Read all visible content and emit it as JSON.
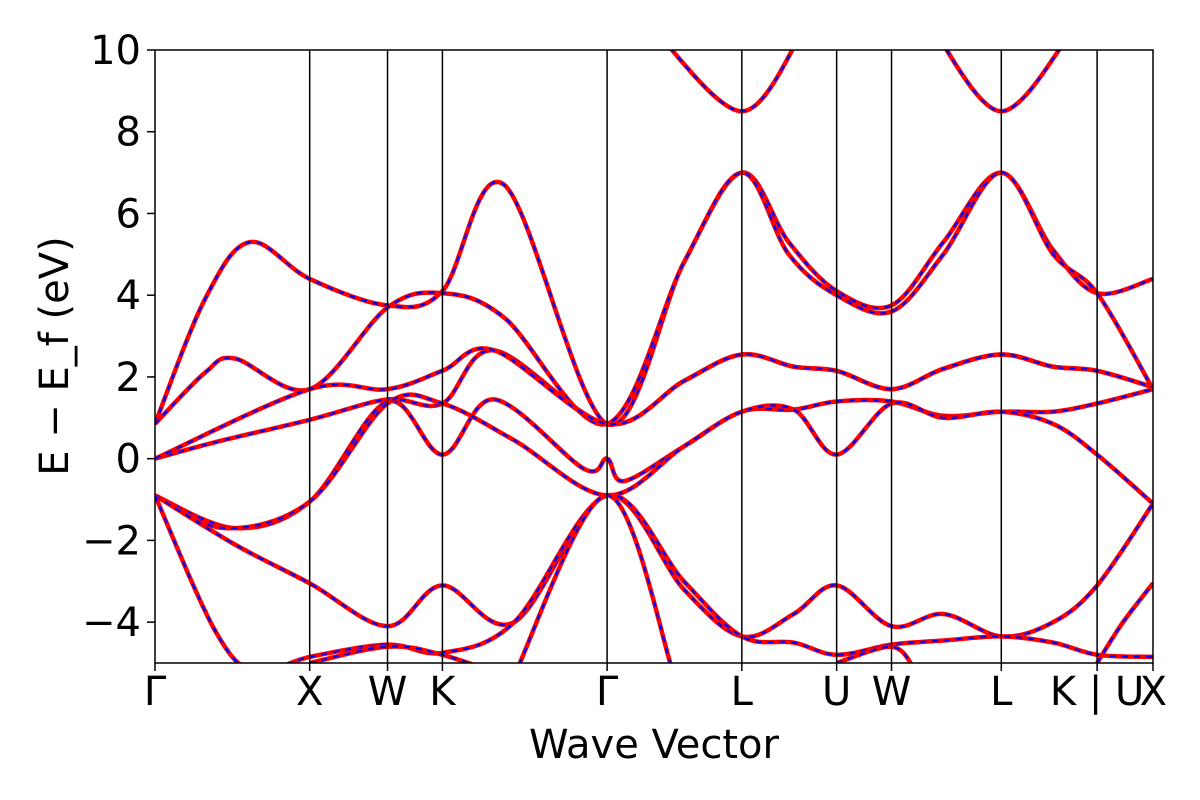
{
  "chart_data": {
    "type": "line",
    "title": "",
    "xlabel": "Wave Vector",
    "ylabel": "E − E_f (eV)",
    "ylim": [
      -5,
      10
    ],
    "yticks": [
      10,
      8,
      6,
      4,
      2,
      0,
      -2,
      -4
    ],
    "ytick_labels": [
      "10",
      "8",
      "6",
      "4",
      "2",
      "0",
      "−2",
      "−4"
    ],
    "kpoint_positions": [
      0,
      0.155,
      0.233,
      0.288,
      0.453,
      0.588,
      0.683,
      0.738,
      0.848,
      0.944,
      1.0
    ],
    "kpoint_labels": [
      "Γ",
      "X",
      "W",
      "K",
      "Γ",
      "L",
      "U",
      "W",
      "L",
      "K | U",
      "X"
    ],
    "grid": false,
    "legend": "none",
    "colors": {
      "band_solid": "#ff0000",
      "band_dashed": "#0000ff",
      "axis": "#000000"
    },
    "series": [
      {
        "values": [
          [
            0,
            0.85
          ],
          [
            0.05,
            3.9
          ],
          [
            0.095,
            5.3
          ],
          [
            0.155,
            4.4
          ],
          [
            0.233,
            3.75
          ],
          [
            0.288,
            4.1
          ],
          [
            0.35,
            6.7
          ],
          [
            0.453,
            0.85
          ],
          [
            0.53,
            4.8
          ],
          [
            0.588,
            7.0
          ],
          [
            0.635,
            5.3
          ],
          [
            0.683,
            4.1
          ],
          [
            0.738,
            3.75
          ],
          [
            0.79,
            5.3
          ],
          [
            0.848,
            7.0
          ],
          [
            0.9,
            5.1
          ],
          [
            0.944,
            4.05
          ],
          [
            1.0,
            4.4
          ]
        ]
      },
      {
        "values": [
          [
            0,
            0.85
          ],
          [
            0.05,
            2.1
          ],
          [
            0.08,
            2.45
          ],
          [
            0.155,
            1.7
          ],
          [
            0.233,
            3.7
          ],
          [
            0.288,
            4.05
          ],
          [
            0.35,
            3.45
          ],
          [
            0.453,
            0.85
          ],
          [
            0.53,
            4.8
          ],
          [
            0.588,
            7.0
          ],
          [
            0.635,
            5.0
          ],
          [
            0.683,
            4.0
          ],
          [
            0.738,
            3.6
          ],
          [
            0.79,
            5.0
          ],
          [
            0.848,
            7.0
          ],
          [
            0.9,
            5.0
          ],
          [
            0.944,
            4.05
          ],
          [
            1.0,
            1.7
          ]
        ]
      },
      {
        "values": [
          [
            0,
            0
          ],
          [
            0.06,
            0.4
          ],
          [
            0.155,
            0.95
          ],
          [
            0.233,
            1.45
          ],
          [
            0.288,
            1.35
          ],
          [
            0.34,
            2.65
          ],
          [
            0.453,
            0.85
          ],
          [
            0.53,
            1.9
          ],
          [
            0.588,
            2.55
          ],
          [
            0.64,
            2.25
          ],
          [
            0.683,
            2.15
          ],
          [
            0.738,
            1.7
          ],
          [
            0.79,
            2.2
          ],
          [
            0.848,
            2.55
          ],
          [
            0.9,
            2.25
          ],
          [
            0.944,
            2.15
          ],
          [
            1.0,
            1.75
          ]
        ]
      },
      {
        "values": [
          [
            0,
            0
          ],
          [
            0.155,
            1.7
          ],
          [
            0.233,
            1.7
          ],
          [
            0.288,
            2.15
          ],
          [
            0.34,
            2.65
          ],
          [
            0.453,
            0.85
          ],
          [
            0.53,
            1.9
          ],
          [
            0.588,
            2.55
          ],
          [
            0.64,
            2.25
          ],
          [
            0.683,
            2.15
          ],
          [
            0.738,
            1.7
          ],
          [
            0.79,
            2.2
          ],
          [
            0.848,
            2.55
          ],
          [
            0.9,
            2.25
          ],
          [
            0.944,
            2.15
          ],
          [
            1.0,
            1.75
          ]
        ]
      },
      {
        "values": [
          [
            0,
            -0.9
          ],
          [
            0.08,
            -1.7
          ],
          [
            0.155,
            -1.05
          ],
          [
            0.233,
            1.4
          ],
          [
            0.288,
            0.1
          ],
          [
            0.34,
            1.45
          ],
          [
            0.43,
            -0.25
          ],
          [
            0.453,
            0.0
          ],
          [
            0.47,
            -0.55
          ],
          [
            0.53,
            0.3
          ],
          [
            0.588,
            1.15
          ],
          [
            0.64,
            1.2
          ],
          [
            0.683,
            1.4
          ],
          [
            0.738,
            1.4
          ],
          [
            0.79,
            1.05
          ],
          [
            0.848,
            1.15
          ],
          [
            0.9,
            1.15
          ],
          [
            0.944,
            1.35
          ],
          [
            1.0,
            1.7
          ]
        ]
      },
      {
        "values": [
          [
            0,
            -0.9
          ],
          [
            0.07,
            -1.7
          ],
          [
            0.155,
            -1.05
          ],
          [
            0.233,
            1.35
          ],
          [
            0.288,
            1.35
          ],
          [
            0.36,
            0.45
          ],
          [
            0.453,
            -0.9
          ],
          [
            0.53,
            0.3
          ],
          [
            0.588,
            1.15
          ],
          [
            0.64,
            1.2
          ],
          [
            0.683,
            0.1
          ],
          [
            0.738,
            1.35
          ],
          [
            0.79,
            1.0
          ],
          [
            0.848,
            1.15
          ],
          [
            0.9,
            0.85
          ],
          [
            0.944,
            0.1
          ],
          [
            1.0,
            -1.1
          ]
        ]
      },
      {
        "values": [
          [
            0,
            -0.9
          ],
          [
            0.08,
            -2.1
          ],
          [
            0.155,
            -3.05
          ],
          [
            0.233,
            -4.1
          ],
          [
            0.288,
            -3.1
          ],
          [
            0.36,
            -4.0
          ],
          [
            0.453,
            -0.9
          ],
          [
            0.53,
            -3.2
          ],
          [
            0.588,
            -4.35
          ],
          [
            0.64,
            -3.8
          ],
          [
            0.683,
            -3.1
          ],
          [
            0.738,
            -4.1
          ],
          [
            0.79,
            -3.8
          ],
          [
            0.848,
            -4.35
          ],
          [
            0.9,
            -4.0
          ],
          [
            0.944,
            -3.1
          ],
          [
            1.0,
            -1.1
          ]
        ]
      },
      {
        "values": [
          [
            0,
            -0.9
          ],
          [
            0.06,
            -4.2
          ],
          [
            0.1,
            -5.2
          ],
          [
            0.155,
            -4.85
          ],
          [
            0.233,
            -4.55
          ],
          [
            0.288,
            -4.75
          ],
          [
            0.36,
            -4.0
          ],
          [
            0.453,
            -0.9
          ],
          [
            0.53,
            -3.0
          ],
          [
            0.588,
            -4.35
          ],
          [
            0.64,
            -4.5
          ],
          [
            0.683,
            -4.8
          ],
          [
            0.738,
            -4.55
          ],
          [
            0.79,
            -4.45
          ],
          [
            0.848,
            -4.35
          ],
          [
            0.9,
            -4.5
          ],
          [
            0.944,
            -4.8
          ],
          [
            1.0,
            -4.85
          ]
        ]
      },
      {
        "values": [
          [
            0.155,
            -5.0
          ],
          [
            0.233,
            -4.6
          ],
          [
            0.288,
            -4.8
          ],
          [
            0.36,
            -5.4
          ]
        ]
      },
      {
        "values": [
          [
            0.36,
            -5.3
          ],
          [
            0.453,
            -0.9
          ],
          [
            0.52,
            -5.3
          ]
        ]
      },
      {
        "values": [
          [
            0.683,
            -5.0
          ],
          [
            0.738,
            -4.6
          ],
          [
            0.76,
            -5.1
          ]
        ]
      },
      {
        "values": [
          [
            0.944,
            -5.0
          ],
          [
            0.97,
            -4.0
          ],
          [
            1.0,
            -3.05
          ]
        ]
      },
      {
        "values": [
          [
            0.5,
            10.5
          ],
          [
            0.588,
            8.5
          ],
          [
            0.65,
            10.5
          ]
        ]
      },
      {
        "values": [
          [
            0.78,
            10.5
          ],
          [
            0.848,
            8.5
          ],
          [
            0.92,
            10.5
          ]
        ]
      }
    ]
  }
}
